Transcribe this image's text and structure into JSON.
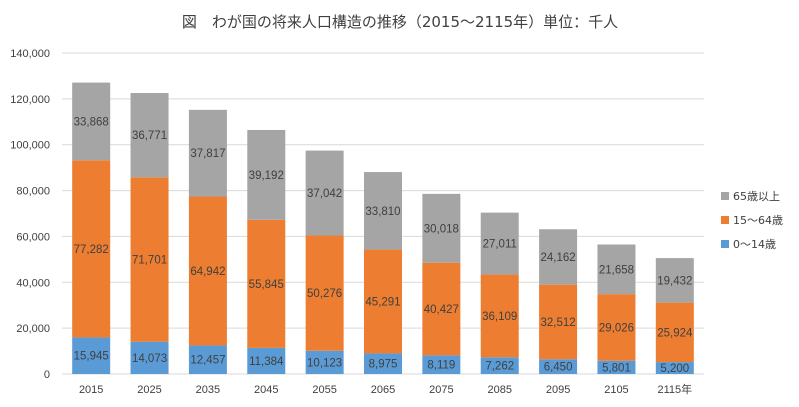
{
  "chart_data": {
    "type": "bar",
    "stacked": true,
    "title": "図　わが国の将来人口構造の推移（2015～2115年）単位：千人",
    "categories": [
      "2015",
      "2025",
      "2035",
      "2045",
      "2055",
      "2065",
      "2075",
      "2085",
      "2095",
      "2105",
      "2115年"
    ],
    "series": [
      {
        "name": "0～14歳",
        "color": "#5B9BD5",
        "values": [
          15945,
          14073,
          12457,
          11384,
          10123,
          8975,
          8119,
          7262,
          6450,
          5801,
          5200
        ],
        "labels": [
          "15,945",
          "14,073",
          "12,457",
          "11,384",
          "10,123",
          "8,975",
          "8,119",
          "7,262",
          "6,450",
          "5,801",
          "5,200"
        ]
      },
      {
        "name": "15～64歳",
        "color": "#ED7D31",
        "values": [
          77282,
          71701,
          64942,
          55845,
          50276,
          45291,
          40427,
          36109,
          32512,
          29026,
          25924
        ],
        "labels": [
          "77,282",
          "71,701",
          "64,942",
          "55,845",
          "50,276",
          "45,291",
          "40,427",
          "36,109",
          "32,512",
          "29,026",
          "25,924"
        ]
      },
      {
        "name": "65歳以上",
        "color": "#A5A5A5",
        "values": [
          33868,
          36771,
          37817,
          39192,
          37042,
          33810,
          30018,
          27011,
          24162,
          21658,
          19432
        ],
        "labels": [
          "33,868",
          "36,771",
          "37,817",
          "39,192",
          "37,042",
          "33,810",
          "30,018",
          "27,011",
          "24,162",
          "21,658",
          "19,432"
        ]
      }
    ],
    "ylim": [
      0,
      140000
    ],
    "yticks": [
      0,
      20000,
      40000,
      60000,
      80000,
      100000,
      120000,
      140000
    ],
    "ytick_labels": [
      "0",
      "20,000",
      "40,000",
      "60,000",
      "80,000",
      "100,000",
      "120,000",
      "140,000"
    ],
    "grid": true,
    "legend_position": "right",
    "legend_order": [
      "65歳以上",
      "15～64歳",
      "0～14歳"
    ],
    "gridline_color": "#D9D9D9",
    "label_color": "#404040"
  }
}
